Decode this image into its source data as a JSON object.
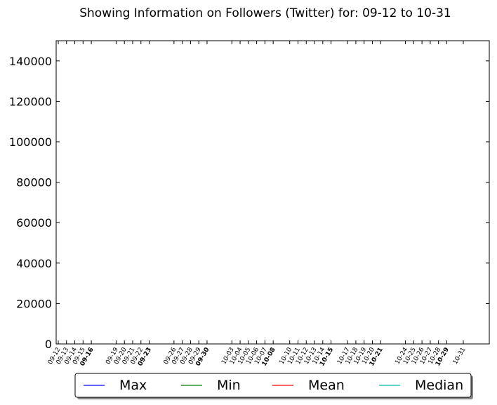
{
  "chart_data": {
    "type": "line",
    "title": "Showing Information on Followers (Twitter) for: 09-12 to 10-31",
    "xlabel": "",
    "ylabel": "",
    "ylim": [
      0,
      150000
    ],
    "yticks": [
      0,
      20000,
      40000,
      60000,
      80000,
      100000,
      120000,
      140000
    ],
    "grid": false,
    "legend_placement": "bottom-center",
    "x_dates": [
      "09-12",
      "09-13",
      "09-14",
      "09-15",
      "09-16",
      "09-19",
      "09-20",
      "09-21",
      "09-22",
      "09-23",
      "09-26",
      "09-27",
      "09-28",
      "09-29",
      "09-30",
      "10-03",
      "10-04",
      "10-05",
      "10-06",
      "10-07",
      "10-08",
      "10-10",
      "10-11",
      "10-12",
      "10-13",
      "10-14",
      "10-15",
      "10-17",
      "10-18",
      "10-19",
      "10-20",
      "10-21",
      "10-24",
      "10-25",
      "10-26",
      "10-27",
      "10-28",
      "10-29",
      "10-31"
    ],
    "bold_dates": [
      "09-16",
      "09-23",
      "09-30",
      "10-08",
      "10-15",
      "10-21",
      "10-29"
    ],
    "series": [
      {
        "name": "Max",
        "color": "#0000ff",
        "values": []
      },
      {
        "name": "Min",
        "color": "#008000",
        "values": []
      },
      {
        "name": "Mean",
        "color": "#ff0000",
        "values": []
      },
      {
        "name": "Median",
        "color": "#00bfa5",
        "values": []
      }
    ]
  }
}
